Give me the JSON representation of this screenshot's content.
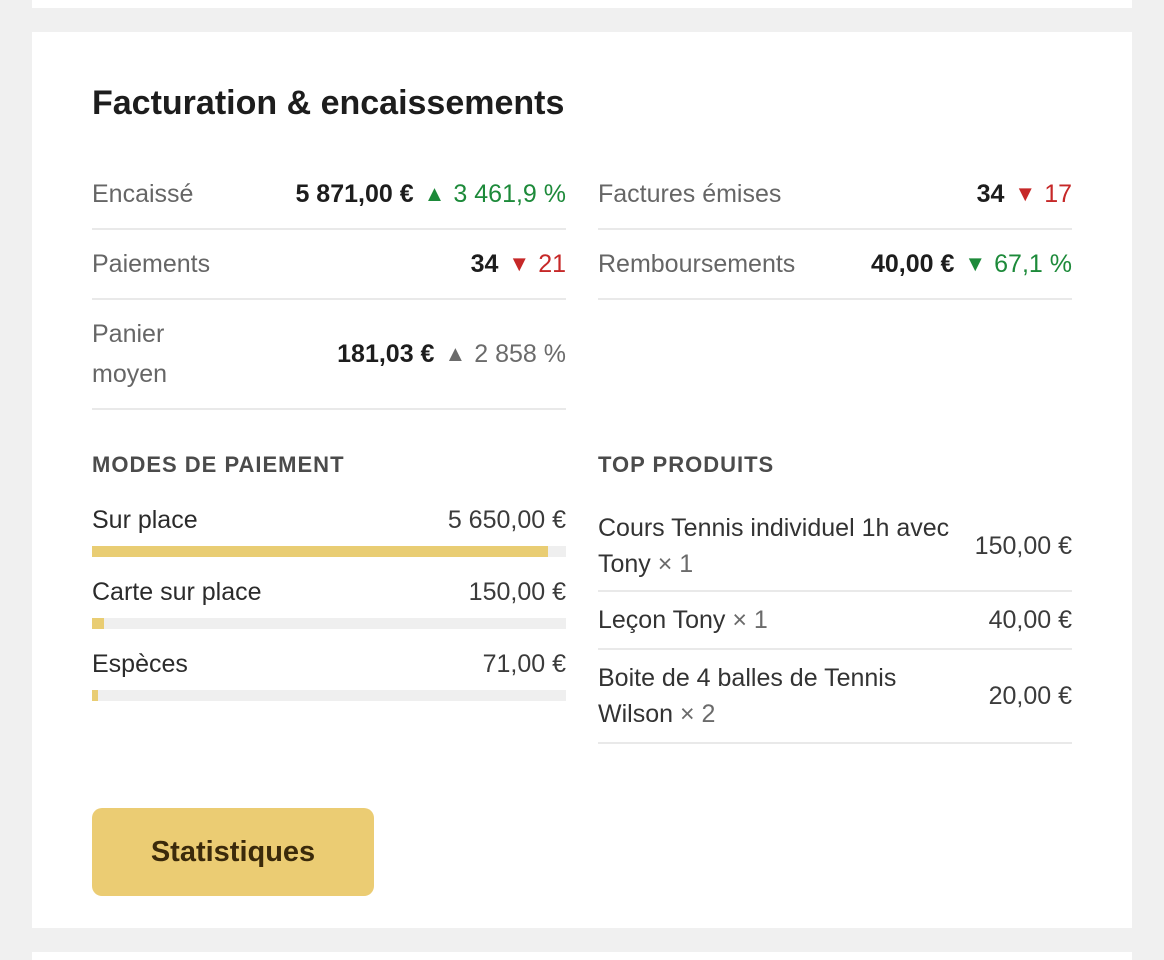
{
  "title": "Facturation & encaissements",
  "kpis_left": [
    {
      "label": "Encaissé",
      "value": "5 871,00 €",
      "trend": "up",
      "delta": "3 461,9 %",
      "trend_color": "#1d8a3a"
    },
    {
      "label": "Paiements",
      "value": "34",
      "trend": "down",
      "delta": "21",
      "trend_color": "#c62828"
    },
    {
      "label_line1": "Panier",
      "label_line2": "moyen",
      "value": "181,03 €",
      "trend": "up",
      "delta": "2 858 %",
      "trend_color": "#6b6b6b"
    }
  ],
  "kpis_right": [
    {
      "label": "Factures émises",
      "value": "34",
      "trend": "down",
      "delta": "17",
      "trend_color": "#c62828"
    },
    {
      "label": "Remboursements",
      "value": "40,00 €",
      "trend": "down",
      "delta": "67,1 %",
      "trend_color": "#1d8a3a"
    }
  ],
  "icons": {
    "up": "▲",
    "down": "▼"
  },
  "payment_modes": {
    "title": "MODES DE PAIEMENT",
    "items": [
      {
        "label": "Sur place",
        "amount": "5 650,00 €",
        "share": 0.962
      },
      {
        "label": "Carte sur place",
        "amount": "150,00 €",
        "share": 0.026
      },
      {
        "label": "Espèces",
        "amount": "71,00 €",
        "share": 0.012
      }
    ],
    "bar_color": "#e9cd73"
  },
  "top_products": {
    "title": "TOP PRODUITS",
    "items": [
      {
        "name": "Cours Tennis individuel 1h avec Tony",
        "qty": "× 1",
        "amount": "150,00 €"
      },
      {
        "name": "Leçon Tony",
        "qty": "× 1",
        "amount": "40,00 €"
      },
      {
        "name": "Boite de 4 balles de Tennis Wilson",
        "qty": "× 2",
        "amount": "20,00 €"
      }
    ]
  },
  "button_label": "Statistiques",
  "button_color": "#ebcc73"
}
